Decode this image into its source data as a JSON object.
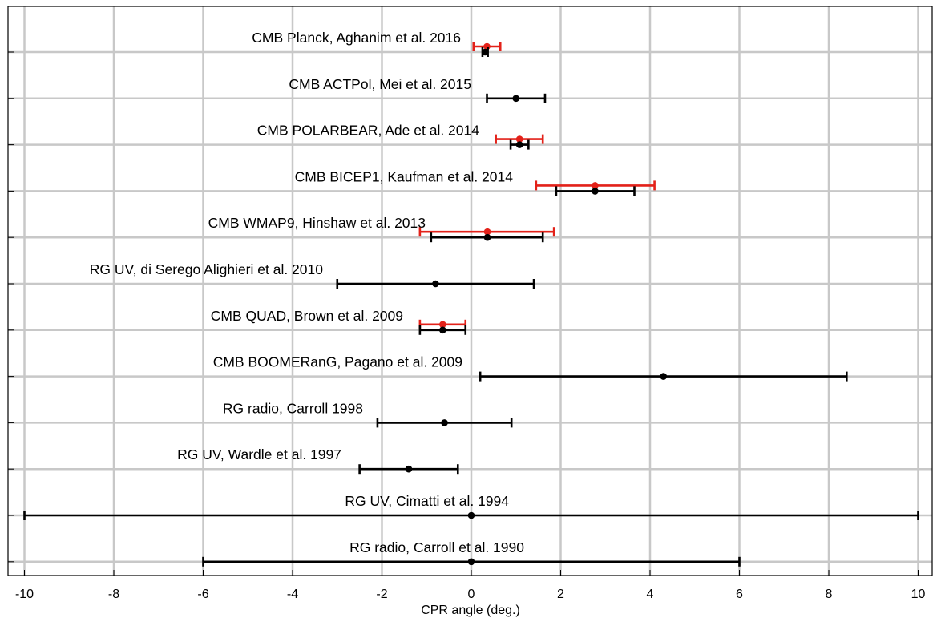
{
  "chart_data": {
    "type": "scatter",
    "title": "",
    "xlabel": "CPR angle (deg.)",
    "ylabel": "",
    "xlim": [
      -10.4,
      10.4
    ],
    "xticks": [
      -10,
      -8,
      -6,
      -4,
      -2,
      0,
      2,
      4,
      6,
      8,
      10
    ],
    "grid": true,
    "colors": {
      "black": "#000000",
      "red": "#e32119",
      "grid": "#c8c8c8"
    },
    "measurements": [
      {
        "label": "CMB Planck, Aghanim et al. 2016",
        "series": [
          {
            "color": "red",
            "value": 0.35,
            "low": 0.05,
            "high": 0.65
          },
          {
            "color": "black",
            "value": 0.31,
            "low": 0.25,
            "high": 0.37
          }
        ]
      },
      {
        "label": "CMB ACTPol, Mei et al. 2015",
        "series": [
          {
            "color": "black",
            "value": 1.0,
            "low": 0.35,
            "high": 1.65
          }
        ]
      },
      {
        "label": "CMB POLARBEAR, Ade et al. 2014",
        "series": [
          {
            "color": "red",
            "value": 1.08,
            "low": 0.55,
            "high": 1.6
          },
          {
            "color": "black",
            "value": 1.08,
            "low": 0.88,
            "high": 1.28
          }
        ]
      },
      {
        "label": "CMB BICEP1, Kaufman et al. 2014",
        "series": [
          {
            "color": "red",
            "value": 2.77,
            "low": 1.45,
            "high": 4.1
          },
          {
            "color": "black",
            "value": 2.77,
            "low": 1.9,
            "high": 3.65
          }
        ]
      },
      {
        "label": "CMB WMAP9, Hinshaw et al. 2013",
        "series": [
          {
            "color": "red",
            "value": 0.36,
            "low": -1.15,
            "high": 1.85
          },
          {
            "color": "black",
            "value": 0.36,
            "low": -0.9,
            "high": 1.6
          }
        ]
      },
      {
        "label": "RG UV, di Serego Alighieri et al. 2010",
        "series": [
          {
            "color": "black",
            "value": -0.8,
            "low": -3.0,
            "high": 1.4
          }
        ]
      },
      {
        "label": "CMB QUAD, Brown et al. 2009",
        "series": [
          {
            "color": "red",
            "value": -0.64,
            "low": -1.15,
            "high": -0.13
          },
          {
            "color": "black",
            "value": -0.64,
            "low": -1.15,
            "high": -0.13
          }
        ]
      },
      {
        "label": "CMB BOOMERanG, Pagano et al. 2009",
        "series": [
          {
            "color": "black",
            "value": 4.3,
            "low": 0.2,
            "high": 8.4
          }
        ]
      },
      {
        "label": "RG radio, Carroll 1998",
        "series": [
          {
            "color": "black",
            "value": -0.6,
            "low": -2.1,
            "high": 0.9
          }
        ]
      },
      {
        "label": "RG UV, Wardle et al. 1997",
        "series": [
          {
            "color": "black",
            "value": -1.4,
            "low": -2.5,
            "high": -0.3
          }
        ]
      },
      {
        "label": "RG UV, Cimatti et al. 1994",
        "series": [
          {
            "color": "black",
            "value": 0.0,
            "low": -10.0,
            "high": 10.0
          }
        ]
      },
      {
        "label": "RG radio, Carroll et al. 1990",
        "series": [
          {
            "color": "black",
            "value": 0.0,
            "low": -6.0,
            "high": 6.0
          }
        ]
      }
    ]
  }
}
